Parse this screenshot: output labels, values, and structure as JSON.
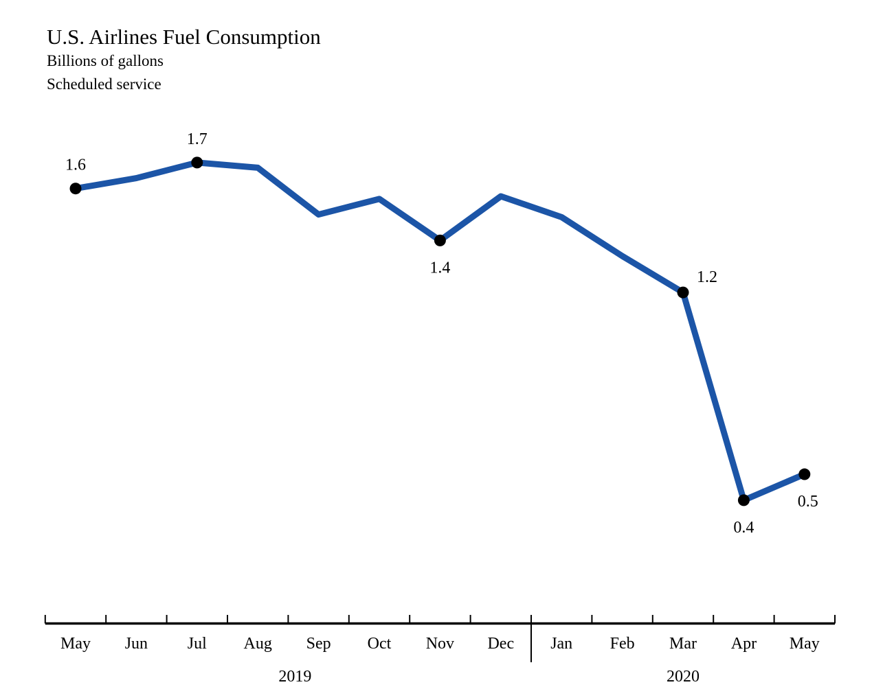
{
  "header": {
    "title": "U.S. Airlines Fuel Consumption",
    "subtitle_units": "Billions of gallons",
    "subtitle_note": "Scheduled service"
  },
  "chart_data": {
    "type": "line",
    "title": "U.S. Airlines Fuel Consumption",
    "ylabel": "Billions of gallons",
    "note": "Scheduled service",
    "categories": [
      "May",
      "Jun",
      "Jul",
      "Aug",
      "Sep",
      "Oct",
      "Nov",
      "Dec",
      "Jan",
      "Feb",
      "Mar",
      "Apr",
      "May"
    ],
    "year_groups": [
      {
        "label": "2019",
        "from": "May",
        "to": "Dec"
      },
      {
        "label": "2020",
        "from": "Jan",
        "to": "May"
      }
    ],
    "series": [
      {
        "name": "U.S. airlines fuel consumption",
        "values": [
          1.6,
          1.64,
          1.7,
          1.68,
          1.5,
          1.56,
          1.4,
          1.57,
          1.49,
          1.34,
          1.2,
          0.4,
          0.5
        ]
      }
    ],
    "point_labels": [
      {
        "index": 0,
        "text": "1.6"
      },
      {
        "index": 2,
        "text": "1.7"
      },
      {
        "index": 6,
        "text": "1.4"
      },
      {
        "index": 10,
        "text": "1.2"
      },
      {
        "index": 11,
        "text": "0.4"
      },
      {
        "index": 12,
        "text": "0.5"
      }
    ],
    "line_color": "#1C55A7",
    "marker_color": "#000000",
    "axis_color": "#000000",
    "ylim": [
      0.3,
      1.8
    ],
    "grid": false,
    "legend": "none",
    "y_axis_shown": false
  }
}
